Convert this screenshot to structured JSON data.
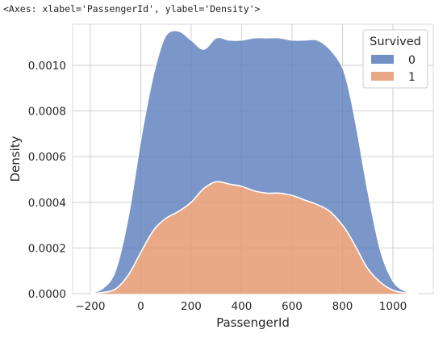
{
  "output_repr": "<Axes: xlabel='PassengerId', ylabel='Density'>",
  "chart_data": {
    "type": "area",
    "stacked": true,
    "xlabel": "PassengerId",
    "ylabel": "Density",
    "xlim": [
      -270,
      1160
    ],
    "ylim": [
      0,
      0.00118
    ],
    "xticks": [
      -200,
      0,
      200,
      400,
      600,
      800,
      1000
    ],
    "xtick_labels": [
      "−200",
      "0",
      "200",
      "400",
      "600",
      "800",
      "1000"
    ],
    "yticks": [
      0,
      0.0002,
      0.0004,
      0.0006,
      0.0008,
      0.001
    ],
    "ytick_labels": [
      "0.0000",
      "0.0002",
      "0.0004",
      "0.0006",
      "0.0008",
      "0.0010"
    ],
    "grid": true,
    "legend": {
      "title": "Survived",
      "placement": "top-right"
    },
    "colors": {
      "0": "#5a7dbb",
      "1": "#e59a72",
      "grid": "#cfcfcf",
      "background": "#ffffff"
    },
    "series": [
      {
        "name": "0",
        "x": [
          -200,
          -150,
          -100,
          -50,
          0,
          30,
          60,
          100,
          150,
          200,
          250,
          300,
          350,
          400,
          450,
          500,
          550,
          600,
          650,
          700,
          750,
          800,
          830,
          860,
          900,
          950,
          1000,
          1050,
          1100
        ],
        "values": [
          2e-06,
          1.8e-05,
          8e-05,
          0.00025,
          0.00049,
          0.00061,
          0.00071,
          0.0008,
          0.00079,
          0.00071,
          0.00061,
          0.00063,
          0.00063,
          0.00064,
          0.00067,
          0.00068,
          0.00068,
          0.00068,
          0.0007,
          0.00072,
          0.00071,
          0.00069,
          0.00062,
          0.00051,
          0.00034,
          0.00014,
          4e-05,
          7e-06,
          5e-07
        ]
      },
      {
        "name": "1",
        "x": [
          -200,
          -150,
          -100,
          -50,
          0,
          30,
          60,
          100,
          150,
          200,
          250,
          300,
          350,
          400,
          450,
          500,
          550,
          600,
          650,
          700,
          750,
          800,
          830,
          860,
          900,
          950,
          1000,
          1050,
          1100
        ],
        "values": [
          1e-06,
          5e-06,
          2e-05,
          8e-05,
          0.00018,
          0.00024,
          0.00029,
          0.00033,
          0.00036,
          0.0004,
          0.00046,
          0.00049,
          0.00048,
          0.00047,
          0.00045,
          0.00044,
          0.00044,
          0.00043,
          0.00041,
          0.00039,
          0.00036,
          0.0003,
          0.00025,
          0.00019,
          0.00011,
          5e-05,
          1.5e-05,
          3e-06,
          5e-07
        ]
      }
    ]
  }
}
